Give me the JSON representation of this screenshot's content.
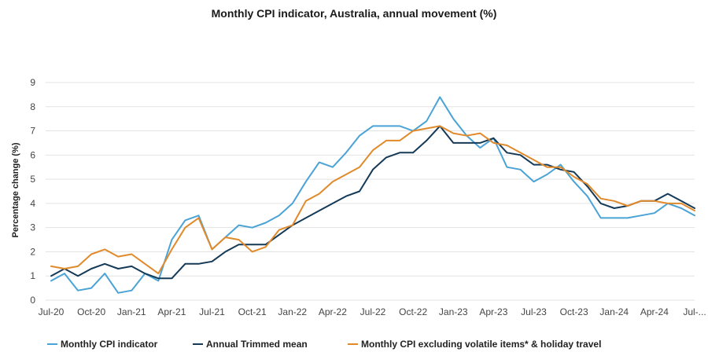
{
  "chart_data": {
    "type": "line",
    "title": "Monthly CPI indicator, Australia, annual movement (%)",
    "ylabel": "Percentage change (%)",
    "xlabel": "",
    "ylim": [
      0,
      9
    ],
    "yticks": [
      0,
      1,
      2,
      3,
      4,
      5,
      6,
      7,
      8,
      9
    ],
    "grid": true,
    "legend_position": "bottom",
    "x": [
      "Jul-20",
      "Aug-20",
      "Sep-20",
      "Oct-20",
      "Nov-20",
      "Dec-20",
      "Jan-21",
      "Feb-21",
      "Mar-21",
      "Apr-21",
      "May-21",
      "Jun-21",
      "Jul-21",
      "Aug-21",
      "Sep-21",
      "Oct-21",
      "Nov-21",
      "Dec-21",
      "Jan-22",
      "Feb-22",
      "Mar-22",
      "Apr-22",
      "May-22",
      "Jun-22",
      "Jul-22",
      "Aug-22",
      "Sep-22",
      "Oct-22",
      "Nov-22",
      "Dec-22",
      "Jan-23",
      "Feb-23",
      "Mar-23",
      "Apr-23",
      "May-23",
      "Jun-23",
      "Jul-23",
      "Aug-23",
      "Sep-23",
      "Oct-23",
      "Nov-23",
      "Dec-23",
      "Jan-24",
      "Feb-24",
      "Mar-24",
      "Apr-24",
      "May-24",
      "Jun-24",
      "Jul-24"
    ],
    "x_tick_labels": [
      {
        "index": 0,
        "label": "Jul-20"
      },
      {
        "index": 3,
        "label": "Oct-20"
      },
      {
        "index": 6,
        "label": "Jan-21"
      },
      {
        "index": 9,
        "label": "Apr-21"
      },
      {
        "index": 12,
        "label": "Jul-21"
      },
      {
        "index": 15,
        "label": "Oct-21"
      },
      {
        "index": 18,
        "label": "Jan-22"
      },
      {
        "index": 21,
        "label": "Apr-22"
      },
      {
        "index": 24,
        "label": "Jul-22"
      },
      {
        "index": 27,
        "label": "Oct-22"
      },
      {
        "index": 30,
        "label": "Jan-23"
      },
      {
        "index": 33,
        "label": "Apr-23"
      },
      {
        "index": 36,
        "label": "Jul-23"
      },
      {
        "index": 39,
        "label": "Oct-23"
      },
      {
        "index": 42,
        "label": "Jan-24"
      },
      {
        "index": 45,
        "label": "Apr-24"
      },
      {
        "index": 48,
        "label": "Jul-..."
      }
    ],
    "series": [
      {
        "name": "Monthly CPI indicator",
        "color": "#4aa3d6",
        "values": [
          0.8,
          1.1,
          0.4,
          0.5,
          1.1,
          0.3,
          0.4,
          1.1,
          0.8,
          2.5,
          3.3,
          3.5,
          2.1,
          2.6,
          3.1,
          3.0,
          3.2,
          3.5,
          4.0,
          4.9,
          5.7,
          5.5,
          6.1,
          6.8,
          7.2,
          7.2,
          7.2,
          7.0,
          7.4,
          8.4,
          7.5,
          6.8,
          6.3,
          6.7,
          5.5,
          5.4,
          4.9,
          5.2,
          5.6,
          4.9,
          4.3,
          3.4,
          3.4,
          3.4,
          3.5,
          3.6,
          4.0,
          3.8,
          3.5
        ]
      },
      {
        "name": "Annual Trimmed mean",
        "color": "#153a57",
        "values": [
          1.0,
          1.3,
          1.0,
          1.3,
          1.5,
          1.3,
          1.4,
          1.1,
          0.9,
          0.9,
          1.5,
          1.5,
          1.6,
          2.0,
          2.3,
          2.3,
          2.3,
          2.7,
          3.1,
          3.4,
          3.7,
          4.0,
          4.3,
          4.5,
          5.4,
          5.9,
          6.1,
          6.1,
          6.6,
          7.2,
          6.5,
          6.5,
          6.5,
          6.7,
          6.1,
          6.0,
          5.6,
          5.6,
          5.4,
          5.3,
          4.7,
          4.0,
          3.8,
          3.9,
          4.1,
          4.1,
          4.4,
          4.1,
          3.8
        ]
      },
      {
        "name": "Monthly CPI excluding volatile items* & holiday travel",
        "color": "#e08a2b",
        "values": [
          1.4,
          1.3,
          1.4,
          1.9,
          2.1,
          1.8,
          1.9,
          1.5,
          1.1,
          2.1,
          3.0,
          3.4,
          2.1,
          2.6,
          2.5,
          2.0,
          2.2,
          2.9,
          3.1,
          4.1,
          4.4,
          4.9,
          5.2,
          5.5,
          6.2,
          6.6,
          6.6,
          7.0,
          7.1,
          7.2,
          6.9,
          6.8,
          6.9,
          6.5,
          6.4,
          6.1,
          5.8,
          5.5,
          5.5,
          5.1,
          4.8,
          4.2,
          4.1,
          3.9,
          4.1,
          4.1,
          4.0,
          4.0,
          3.7
        ]
      }
    ]
  }
}
